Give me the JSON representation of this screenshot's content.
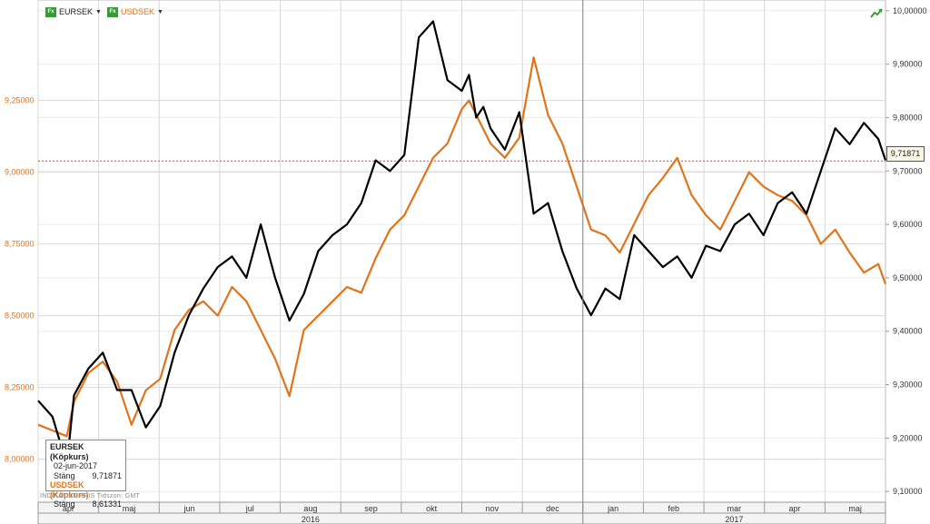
{
  "toolbar": {
    "series1_label": "EURSEK",
    "series2_label": "USDSEK",
    "fx_glyph": "Fx",
    "icon": "trend-up-icon"
  },
  "legend": {
    "title1": "EURSEK (Köpkurs)",
    "date": "02-jun-2017",
    "close_label1": "Stäng",
    "close_value1": "9,71871",
    "title2": "USDSEK (Köpkurs)",
    "close_label2": "Stäng",
    "close_value2": "8,61331"
  },
  "footer": {
    "indicative": "INDIKATIVT PRIS",
    "timezone": "Tidszon: GMT"
  },
  "current_value_label": "9,71871",
  "chart_data": {
    "type": "line",
    "title": "",
    "xlabel": "",
    "grid": true,
    "left_axis": {
      "series": "USDSEK",
      "ylim": [
        7.85,
        9.6
      ],
      "ticks": [
        "8,00000",
        "8,25000",
        "8,50000",
        "8,75000",
        "9,00000",
        "9,25000"
      ],
      "tick_values": [
        8.0,
        8.25,
        8.5,
        8.75,
        9.0,
        9.25
      ],
      "color": "#e0741c"
    },
    "right_axis": {
      "series": "EURSEK",
      "ylim": [
        9.08,
        10.02
      ],
      "ticks": [
        "9,10000",
        "9,20000",
        "9,30000",
        "9,40000",
        "9,50000",
        "9,60000",
        "9,70000",
        "9,80000",
        "9,90000",
        "10,00000"
      ],
      "tick_values": [
        9.1,
        9.2,
        9.3,
        9.4,
        9.5,
        9.6,
        9.7,
        9.8,
        9.9,
        10.0
      ],
      "color": "#000000"
    },
    "x_months": [
      "apr",
      "maj",
      "jun",
      "jul",
      "aug",
      "sep",
      "okt",
      "nov",
      "dec",
      "jan",
      "feb",
      "mar",
      "apr",
      "maj"
    ],
    "x_years": [
      "2016",
      "2017"
    ],
    "x_range": [
      2016.25,
      2017.43
    ],
    "reference_line": {
      "axis": "right",
      "value": 9.71871,
      "color": "#e04040"
    },
    "series": [
      {
        "name": "EURSEK",
        "axis": "right",
        "color": "#000000",
        "x": [
          2016.25,
          2016.27,
          2016.29,
          2016.3,
          2016.32,
          2016.34,
          2016.36,
          2016.38,
          2016.4,
          2016.42,
          2016.44,
          2016.46,
          2016.48,
          2016.5,
          2016.52,
          2016.54,
          2016.56,
          2016.58,
          2016.6,
          2016.62,
          2016.64,
          2016.66,
          2016.68,
          2016.7,
          2016.72,
          2016.74,
          2016.76,
          2016.78,
          2016.8,
          2016.82,
          2016.84,
          2016.85,
          2016.86,
          2016.87,
          2016.88,
          2016.9,
          2016.92,
          2016.94,
          2016.96,
          2016.98,
          2017.0,
          2017.02,
          2017.04,
          2017.06,
          2017.08,
          2017.1,
          2017.12,
          2017.14,
          2017.16,
          2017.18,
          2017.2,
          2017.22,
          2017.24,
          2017.26,
          2017.28,
          2017.3,
          2017.32,
          2017.34,
          2017.36,
          2017.38,
          2017.4,
          2017.42,
          2017.43
        ],
        "values": [
          9.27,
          9.24,
          9.15,
          9.28,
          9.33,
          9.36,
          9.29,
          9.29,
          9.22,
          9.26,
          9.36,
          9.43,
          9.48,
          9.52,
          9.54,
          9.5,
          9.6,
          9.5,
          9.42,
          9.47,
          9.55,
          9.58,
          9.6,
          9.64,
          9.72,
          9.7,
          9.73,
          9.95,
          9.98,
          9.87,
          9.85,
          9.88,
          9.8,
          9.82,
          9.78,
          9.74,
          9.81,
          9.62,
          9.64,
          9.55,
          9.48,
          9.43,
          9.48,
          9.46,
          9.58,
          9.55,
          9.52,
          9.54,
          9.5,
          9.56,
          9.55,
          9.6,
          9.62,
          9.58,
          9.64,
          9.66,
          9.62,
          9.7,
          9.78,
          9.75,
          9.79,
          9.76,
          9.72
        ]
      },
      {
        "name": "USDSEK",
        "axis": "left",
        "color": "#e0741c",
        "x": [
          2016.25,
          2016.27,
          2016.29,
          2016.3,
          2016.32,
          2016.34,
          2016.36,
          2016.38,
          2016.4,
          2016.42,
          2016.44,
          2016.46,
          2016.48,
          2016.5,
          2016.52,
          2016.54,
          2016.56,
          2016.58,
          2016.6,
          2016.62,
          2016.64,
          2016.66,
          2016.68,
          2016.7,
          2016.72,
          2016.74,
          2016.76,
          2016.78,
          2016.8,
          2016.82,
          2016.84,
          2016.85,
          2016.86,
          2016.87,
          2016.88,
          2016.9,
          2016.92,
          2016.94,
          2016.96,
          2016.98,
          2017.0,
          2017.02,
          2017.04,
          2017.06,
          2017.08,
          2017.1,
          2017.12,
          2017.14,
          2017.16,
          2017.18,
          2017.2,
          2017.22,
          2017.24,
          2017.26,
          2017.28,
          2017.3,
          2017.32,
          2017.34,
          2017.36,
          2017.38,
          2017.4,
          2017.42,
          2017.43
        ],
        "values": [
          8.12,
          8.1,
          8.08,
          8.2,
          8.3,
          8.34,
          8.27,
          8.12,
          8.24,
          8.28,
          8.45,
          8.52,
          8.55,
          8.5,
          8.6,
          8.55,
          8.45,
          8.35,
          8.22,
          8.45,
          8.5,
          8.55,
          8.6,
          8.58,
          8.7,
          8.8,
          8.85,
          8.95,
          9.05,
          9.1,
          9.22,
          9.25,
          9.2,
          9.15,
          9.1,
          9.05,
          9.12,
          9.4,
          9.2,
          9.1,
          8.95,
          8.8,
          8.78,
          8.72,
          8.82,
          8.92,
          8.98,
          9.05,
          8.92,
          8.85,
          8.8,
          8.9,
          9.0,
          8.95,
          8.92,
          8.9,
          8.85,
          8.75,
          8.8,
          8.72,
          8.65,
          8.68,
          8.61
        ]
      }
    ]
  }
}
